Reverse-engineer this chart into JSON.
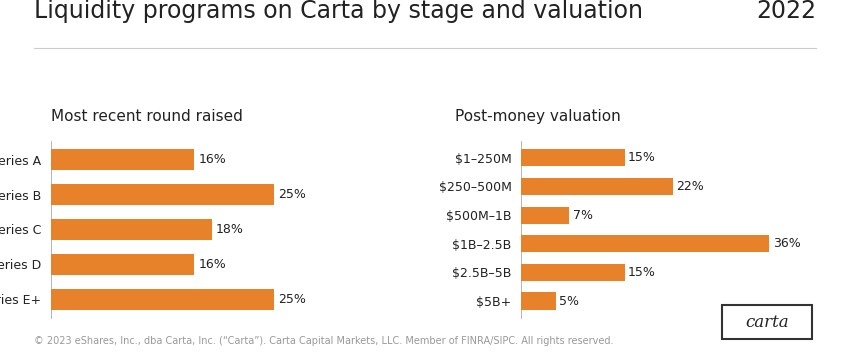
{
  "title": "Liquidity programs on Carta by stage and valuation",
  "year": "2022",
  "left_subtitle": "Most recent round raised",
  "right_subtitle": "Post-money valuation",
  "left_categories": [
    "Series A",
    "Series B",
    "Series C",
    "Series D",
    "Series E+"
  ],
  "left_values": [
    16,
    25,
    18,
    16,
    25
  ],
  "left_labels": [
    "16%",
    "25%",
    "18%",
    "16%",
    "25%"
  ],
  "right_categories": [
    "$1–250M",
    "$250–500M",
    "$500M–1B",
    "$1B–2.5B",
    "$2.5B–5B",
    "$5B+"
  ],
  "right_values": [
    15,
    22,
    7,
    36,
    15,
    5
  ],
  "right_labels": [
    "15%",
    "22%",
    "7%",
    "36%",
    "15%",
    "5%"
  ],
  "bar_color": "#E8822A",
  "background_color": "#FFFFFF",
  "text_color": "#222222",
  "footer_text": "© 2023 eShares, Inc., dba Carta, Inc. (“Carta”). Carta Capital Markets, LLC. Member of FINRA/SIPC. All rights reserved.",
  "title_fontsize": 17,
  "subtitle_fontsize": 11,
  "label_fontsize": 9,
  "footer_fontsize": 7
}
